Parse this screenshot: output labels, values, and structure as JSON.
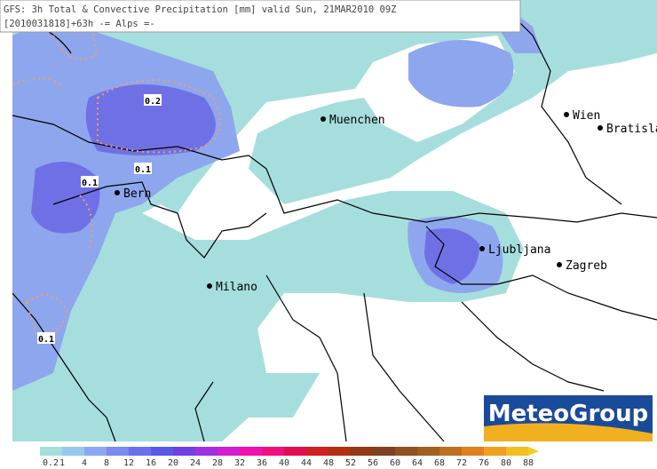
{
  "header": {
    "line1": "GFS: 3h Total & Convective Precipitation [mm] valid Sun, 21MAR2010 09Z",
    "line2": "[2010031818]+63h -= Alps =-"
  },
  "cities": [
    "Muenchen",
    "Wien",
    "Bratisla",
    "Bern",
    "Ljubljana",
    "Zagreb",
    "Milano"
  ],
  "contour_labels": [
    "0.2",
    "0.1",
    "0.1",
    "0.1"
  ],
  "logo": "MeteoGroup",
  "legend": {
    "labels": [
      "0.2",
      "1",
      "4",
      "8",
      "12",
      "16",
      "20",
      "24",
      "28",
      "32",
      "36",
      "40",
      "44",
      "48",
      "52",
      "56",
      "60",
      "64",
      "68",
      "72",
      "76",
      "80",
      "88"
    ]
  }
}
